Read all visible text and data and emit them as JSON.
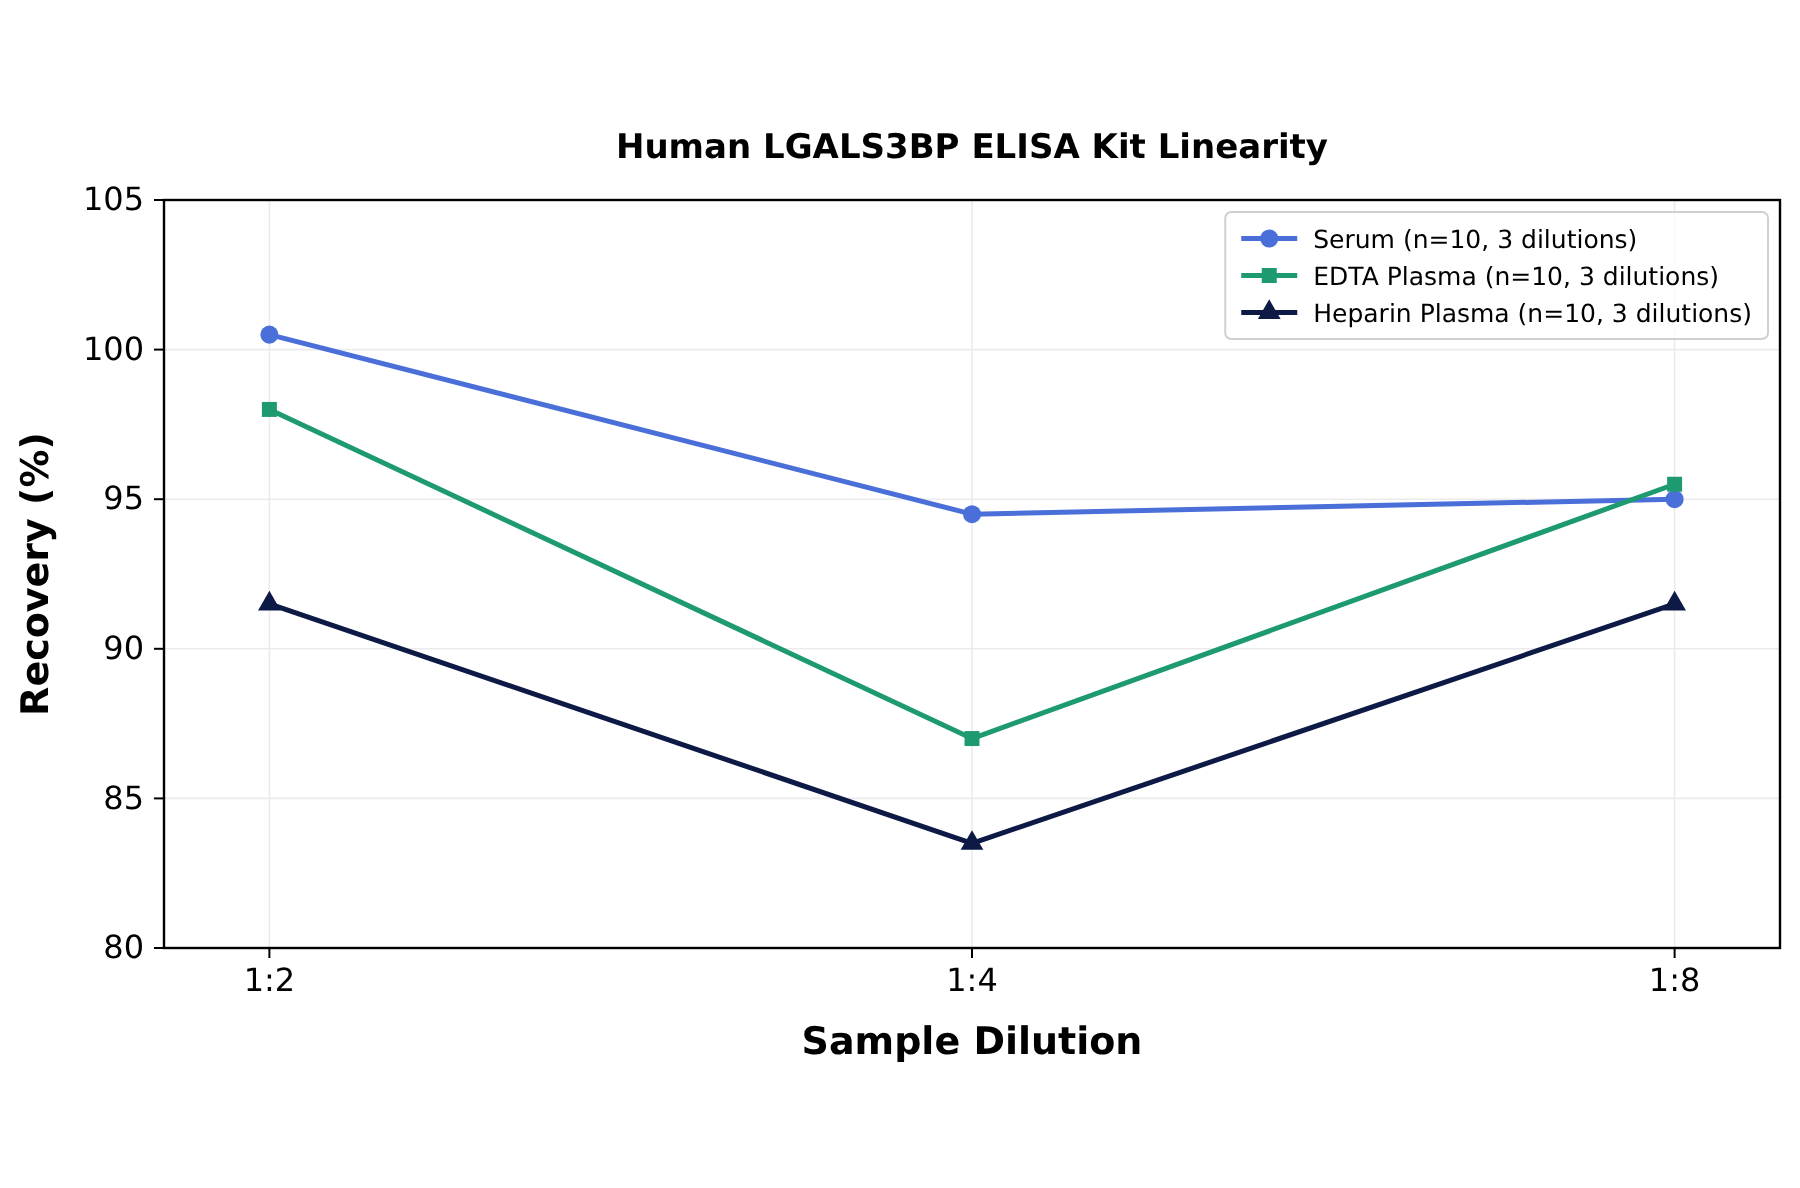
{
  "chart_data": {
    "type": "line",
    "title": "Human LGALS3BP ELISA Kit Linearity",
    "xlabel": "Sample Dilution",
    "ylabel": "Recovery (%)",
    "categories": [
      "1:2",
      "1:4",
      "1:8"
    ],
    "series": [
      {
        "name": "Serum (n=10, 3 dilutions)",
        "color": "#4a6fd8",
        "marker": "circle",
        "values": [
          100.5,
          94.5,
          95
        ]
      },
      {
        "name": "EDTA Plasma (n=10, 3 dilutions)",
        "color": "#1e9a70",
        "marker": "square",
        "values": [
          98,
          87,
          95.5
        ]
      },
      {
        "name": "Heparin Plasma (n=10, 3 dilutions)",
        "color": "#0d1a45",
        "marker": "triangle",
        "values": [
          91.5,
          83.5,
          91.5
        ]
      }
    ],
    "ylim": [
      80,
      105
    ],
    "yticks": [
      80,
      85,
      90,
      95,
      100,
      105
    ],
    "grid": true,
    "legend": "top right",
    "line_style": "solid"
  }
}
